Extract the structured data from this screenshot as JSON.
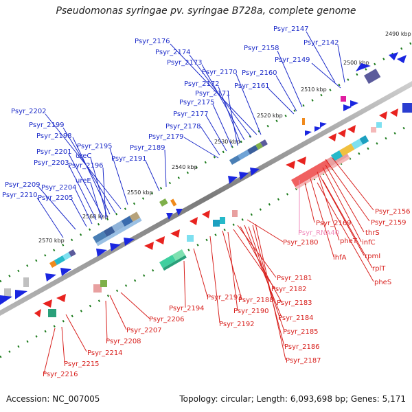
{
  "title": "Pseudomonas syringae pv. syringae B728a, complete genome",
  "footer": {
    "accession": "Accession: NC_007005",
    "summary": "Topology: circular; Length: 6,093,698 bp; Genes: 5,171"
  },
  "colors": {
    "forward_labels": "#1c2bc9",
    "reverse_labels": "#d8201d",
    "rna_labels": "#f08cbc",
    "backbone": "#8a8a8a",
    "tick_marks": "#1a7a1a"
  },
  "ruler_labels": [
    "2490 kbp",
    "2500 kbp",
    "2510 kbp",
    "2520 kbp",
    "2530 kbp",
    "2540 kbp",
    "2550 kbp",
    "2560 kbp",
    "2570 kbp"
  ],
  "forward_genes": [
    "Psyr_2147",
    "Psyr_2142",
    "Psyr_2158",
    "Psyr_2149",
    "Psyr_2176",
    "Psyr_2174",
    "Psyr_2173",
    "Psyr_2170",
    "Psyr_2160",
    "Psyr_2172",
    "Psyr_2161",
    "Psyr_2171",
    "Psyr_2175",
    "Psyr_2177",
    "Psyr_2178",
    "Psyr_2179",
    "Psyr_2202",
    "Psyr_2199",
    "Psyr_2198",
    "Psyr_2195",
    "Psyr_2189",
    "Psyr_2201",
    "ureC",
    "Psyr_2191",
    "Psyr_2203",
    "Psyr_2196",
    "ureE",
    "Psyr_2209",
    "Psyr_2204",
    "Psyr_2210",
    "Psyr_2205"
  ],
  "reverse_genes": [
    "Psyr_2156",
    "Psyr_2159",
    "Psyr_2169",
    "thrS",
    "infC",
    "pheT",
    "Psyr_2180",
    "rpmI",
    "ihfA",
    "rplT",
    "pheS",
    "Psyr_2181",
    "Psyr_2182",
    "Psyr_2183",
    "Psyr_2193",
    "Psyr_2188",
    "Psyr_2194",
    "Psyr_2190",
    "Psyr_2184",
    "Psyr_2206",
    "Psyr_2192",
    "Psyr_2185",
    "Psyr_2207",
    "Psyr_2186",
    "Psyr_2208",
    "Psyr_2187",
    "Psyr_2214",
    "Psyr_2215",
    "Psyr_2216"
  ],
  "rna_genes": [
    "Psyr_RNA40"
  ]
}
